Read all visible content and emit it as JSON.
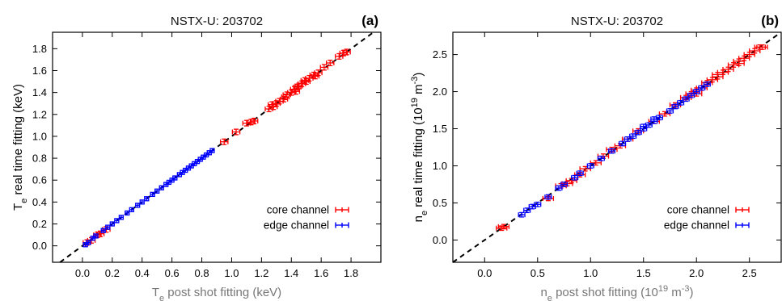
{
  "chart_data": [
    {
      "panel_label": "(a)",
      "type": "scatter",
      "title": "NSTX-U: 203702",
      "xlabel": {
        "base": "T",
        "sub": "e",
        "rest": " post shot fitting (keV)"
      },
      "ylabel": {
        "base": "T",
        "sub": "e",
        "rest": " real time fitting (keV)"
      },
      "xlim": [
        -0.2,
        2.0
      ],
      "ylim": [
        -0.15,
        1.95
      ],
      "xticks": [
        "0.0",
        "0.2",
        "0.4",
        "0.6",
        "0.8",
        "1.0",
        "1.2",
        "1.4",
        "1.6",
        "1.8"
      ],
      "yticks": [
        "0.0",
        "0.2",
        "0.4",
        "0.6",
        "0.8",
        "1.0",
        "1.2",
        "1.4",
        "1.6",
        "1.8"
      ],
      "reference_line": "y = x (dashed)",
      "legend": "bottom-right",
      "series": [
        {
          "name": "core channel",
          "color": "#ff0000",
          "points": [
            [
              0.03,
              0.03
            ],
            [
              0.06,
              0.05
            ],
            [
              0.1,
              0.1
            ],
            [
              0.12,
              0.11
            ],
            [
              0.16,
              0.15
            ],
            [
              0.95,
              0.95
            ],
            [
              1.03,
              1.04
            ],
            [
              1.1,
              1.12
            ],
            [
              1.13,
              1.13
            ],
            [
              1.15,
              1.14
            ],
            [
              1.25,
              1.25
            ],
            [
              1.28,
              1.27
            ],
            [
              1.3,
              1.3
            ],
            [
              1.32,
              1.32
            ],
            [
              1.35,
              1.34
            ],
            [
              1.37,
              1.38
            ],
            [
              1.4,
              1.4
            ],
            [
              1.42,
              1.43
            ],
            [
              1.44,
              1.45
            ],
            [
              1.45,
              1.46
            ],
            [
              1.47,
              1.48
            ],
            [
              1.5,
              1.5
            ],
            [
              1.52,
              1.53
            ],
            [
              1.55,
              1.56
            ],
            [
              1.58,
              1.58
            ],
            [
              1.62,
              1.63
            ],
            [
              1.66,
              1.67
            ],
            [
              1.72,
              1.73
            ],
            [
              1.75,
              1.76
            ],
            [
              1.77,
              1.77
            ],
            [
              1.27,
              1.29
            ],
            [
              1.36,
              1.36
            ],
            [
              1.43,
              1.41
            ],
            [
              1.49,
              1.51
            ],
            [
              1.56,
              1.55
            ]
          ],
          "xerr": 0.025,
          "yerr": 0.025
        },
        {
          "name": "edge channel",
          "color": "#0000ff",
          "points": [
            [
              0.02,
              0.01
            ],
            [
              0.04,
              0.03
            ],
            [
              0.07,
              0.07
            ],
            [
              0.09,
              0.09
            ],
            [
              0.14,
              0.14
            ],
            [
              0.17,
              0.17
            ],
            [
              0.2,
              0.2
            ],
            [
              0.23,
              0.23
            ],
            [
              0.26,
              0.26
            ],
            [
              0.3,
              0.3
            ],
            [
              0.33,
              0.33
            ],
            [
              0.37,
              0.37
            ],
            [
              0.4,
              0.4
            ],
            [
              0.43,
              0.43
            ],
            [
              0.47,
              0.47
            ],
            [
              0.5,
              0.5
            ],
            [
              0.53,
              0.53
            ],
            [
              0.56,
              0.56
            ],
            [
              0.58,
              0.58
            ],
            [
              0.6,
              0.6
            ],
            [
              0.62,
              0.62
            ],
            [
              0.65,
              0.65
            ],
            [
              0.67,
              0.67
            ],
            [
              0.69,
              0.69
            ],
            [
              0.71,
              0.71
            ],
            [
              0.73,
              0.73
            ],
            [
              0.75,
              0.75
            ],
            [
              0.77,
              0.77
            ],
            [
              0.79,
              0.79
            ],
            [
              0.81,
              0.81
            ],
            [
              0.83,
              0.83
            ],
            [
              0.85,
              0.85
            ],
            [
              0.87,
              0.87
            ]
          ],
          "xerr": 0.012,
          "yerr": 0.012
        }
      ]
    },
    {
      "panel_label": "(b)",
      "type": "scatter",
      "title": "NSTX-U: 203702",
      "xlabel": {
        "base": "n",
        "sub": "e",
        "rest": " post shot fitting (10",
        "sup": "19",
        "rest2": " m",
        "sup2": "-3",
        "rest3": ")"
      },
      "ylabel": {
        "base": "n",
        "sub": "e",
        "rest": " real time fitting (10",
        "sup": "19",
        "rest2": " m",
        "sup2": "-3",
        "rest3": ")"
      },
      "xlim": [
        -0.3,
        2.8
      ],
      "ylim": [
        -0.3,
        2.8
      ],
      "xticks": [
        "0.0",
        "0.5",
        "1.0",
        "1.5",
        "2.0",
        "2.5"
      ],
      "yticks": [
        "0.0",
        "0.5",
        "1.0",
        "1.5",
        "2.0",
        "2.5"
      ],
      "reference_line": "y = x (dashed)",
      "legend": "bottom-right",
      "series": [
        {
          "name": "core channel",
          "color": "#ff0000",
          "points": [
            [
              0.16,
              0.16
            ],
            [
              0.18,
              0.18
            ],
            [
              0.6,
              0.56
            ],
            [
              0.72,
              0.73
            ],
            [
              0.78,
              0.76
            ],
            [
              0.82,
              0.8
            ],
            [
              0.9,
              0.88
            ],
            [
              0.95,
              0.96
            ],
            [
              1.05,
              1.04
            ],
            [
              1.12,
              1.13
            ],
            [
              1.2,
              1.22
            ],
            [
              1.28,
              1.27
            ],
            [
              1.35,
              1.36
            ],
            [
              1.45,
              1.47
            ],
            [
              1.6,
              1.6
            ],
            [
              1.7,
              1.7
            ],
            [
              1.8,
              1.82
            ],
            [
              1.9,
              1.92
            ],
            [
              1.95,
              1.97
            ],
            [
              2.0,
              2.02
            ],
            [
              2.05,
              2.05
            ],
            [
              2.1,
              2.12
            ],
            [
              2.15,
              2.16
            ],
            [
              2.2,
              2.2
            ],
            [
              2.25,
              2.26
            ],
            [
              2.3,
              2.3
            ],
            [
              2.35,
              2.36
            ],
            [
              2.4,
              2.41
            ],
            [
              2.45,
              2.45
            ],
            [
              2.5,
              2.5
            ],
            [
              2.55,
              2.55
            ],
            [
              2.6,
              2.6
            ],
            [
              2.62,
              2.6
            ],
            [
              2.0,
              1.97
            ],
            [
              2.2,
              2.23
            ],
            [
              2.4,
              2.38
            ]
          ],
          "xerr": 0.05,
          "yerr": 0.03
        },
        {
          "name": "edge channel",
          "color": "#0000ff",
          "points": [
            [
              0.35,
              0.34
            ],
            [
              0.4,
              0.4
            ],
            [
              0.45,
              0.45
            ],
            [
              0.5,
              0.48
            ],
            [
              0.6,
              0.58
            ],
            [
              0.7,
              0.7
            ],
            [
              0.75,
              0.75
            ],
            [
              0.85,
              0.84
            ],
            [
              0.9,
              0.9
            ],
            [
              1.0,
              1.0
            ],
            [
              1.1,
              1.1
            ],
            [
              1.2,
              1.2
            ],
            [
              1.3,
              1.3
            ],
            [
              1.35,
              1.36
            ],
            [
              1.4,
              1.4
            ],
            [
              1.45,
              1.45
            ],
            [
              1.5,
              1.5
            ],
            [
              1.55,
              1.55
            ],
            [
              1.6,
              1.6
            ],
            [
              1.65,
              1.65
            ],
            [
              1.75,
              1.74
            ],
            [
              1.8,
              1.8
            ],
            [
              1.85,
              1.85
            ],
            [
              1.9,
              1.9
            ],
            [
              1.95,
              1.95
            ],
            [
              2.0,
              2.0
            ],
            [
              2.05,
              2.05
            ],
            [
              2.1,
              2.1
            ],
            [
              1.5,
              1.53
            ],
            [
              1.6,
              1.63
            ]
          ],
          "xerr": 0.03,
          "yerr": 0.03
        }
      ]
    }
  ]
}
